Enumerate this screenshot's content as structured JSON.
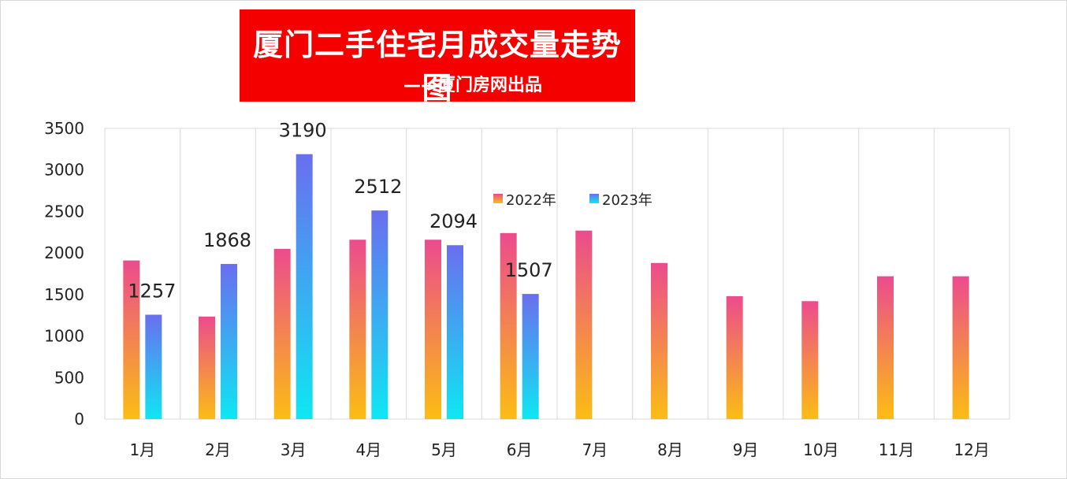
{
  "title": {
    "main": "厦门二手住宅月成交量走势图",
    "sub": "——厦门房网出品",
    "background": "#f50000"
  },
  "colors": {
    "series_2022_top": "#ec4b8e",
    "series_2022_bottom": "#fbbd14",
    "series_2023_top": "#6a6ef0",
    "series_2023_bottom": "#0ee7f2",
    "grid": "#d9d9d9"
  },
  "chart_data": {
    "type": "bar",
    "categories": [
      "1月",
      "2月",
      "3月",
      "4月",
      "5月",
      "6月",
      "7月",
      "8月",
      "9月",
      "10月",
      "11月",
      "12月"
    ],
    "series": [
      {
        "name": "2022年",
        "values": [
          1910,
          1235,
          2050,
          2160,
          2160,
          2240,
          2270,
          1880,
          1480,
          1420,
          1720,
          1720
        ]
      },
      {
        "name": "2023年",
        "values": [
          1257,
          1868,
          3190,
          2512,
          2094,
          1507,
          null,
          null,
          null,
          null,
          null,
          null
        ],
        "data_labels": [
          "1257",
          "1868",
          "3190",
          "2512",
          "2094",
          "1507"
        ]
      }
    ],
    "y_ticks": [
      "0",
      "500",
      "1000",
      "1500",
      "2000",
      "2500",
      "3000",
      "3500"
    ],
    "ylim": [
      0,
      3500
    ],
    "grid": "vertical",
    "legend": "inside-top-center"
  }
}
